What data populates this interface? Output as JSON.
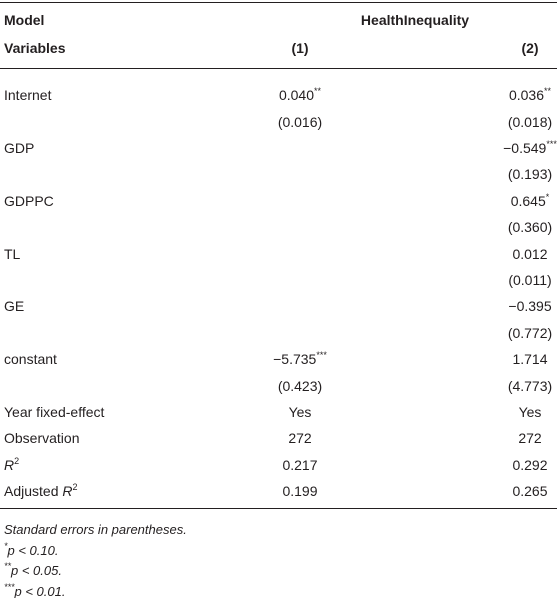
{
  "header": {
    "row1": [
      "Model",
      "HealthInequality"
    ],
    "row2": [
      "Variables",
      "(1)",
      "(2)"
    ]
  },
  "rows": [
    {
      "label": "Internet",
      "cells": [
        {
          "text": "0.040",
          "sup": "**"
        },
        {
          "text": "0.036",
          "sup": "**"
        }
      ]
    },
    {
      "cells": [
        "(0.016)",
        "(0.018)"
      ]
    },
    {
      "label": "GDP",
      "cells": [
        null,
        {
          "text": "−0.549",
          "sup": "***"
        }
      ]
    },
    {
      "cells": [
        null,
        "(0.193)"
      ]
    },
    {
      "label": "GDPPC",
      "cells": [
        null,
        {
          "text": "0.645",
          "sup": "*"
        }
      ]
    },
    {
      "cells": [
        null,
        "(0.360)"
      ]
    },
    {
      "label": "TL",
      "cells": [
        null,
        "0.012"
      ]
    },
    {
      "cells": [
        null,
        "(0.011)"
      ]
    },
    {
      "label": "GE",
      "cells": [
        null,
        "−0.395"
      ]
    },
    {
      "cells": [
        null,
        "(0.772)"
      ]
    },
    {
      "label": "constant",
      "cells": [
        {
          "text": "−5.735",
          "sup": "***"
        },
        "1.714"
      ]
    },
    {
      "cells": [
        "(0.423)",
        "(4.773)"
      ]
    },
    {
      "label": "Year fixed-effect",
      "cells": [
        "Yes",
        "Yes"
      ]
    },
    {
      "label": "Observation",
      "cells": [
        "272",
        "272"
      ]
    },
    {
      "label": {
        "italic": "R",
        "sup": "2"
      },
      "cells": [
        "0.217",
        "0.292"
      ]
    },
    {
      "label": {
        "text": "Adjusted ",
        "italic": "R",
        "sup": "2"
      },
      "cells": [
        "0.199",
        "0.265"
      ]
    }
  ],
  "footnotes": [
    "Standard errors in parentheses.",
    {
      "sup": "*",
      "text": "p < 0.10."
    },
    {
      "sup": "**",
      "text": "p < 0.05."
    },
    {
      "sup": "***",
      "text": "p < 0.01."
    }
  ]
}
